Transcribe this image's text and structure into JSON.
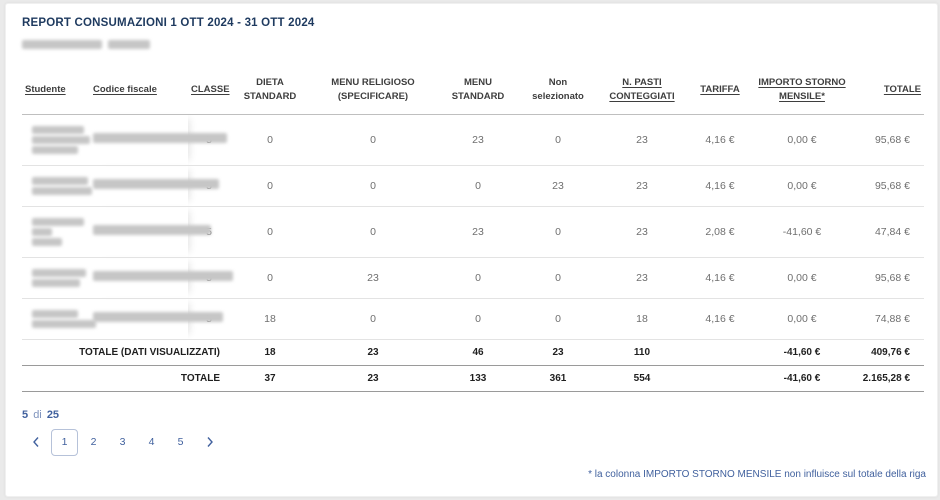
{
  "header": {
    "title": "REPORT CONSUMAZIONI 1 OTT 2024 - 31 OTT 2024",
    "subtitle_redacted": true
  },
  "table": {
    "columns": [
      {
        "key": "studente",
        "label": "Studente",
        "sortable": true
      },
      {
        "key": "codice_fiscale",
        "label": "Codice fiscale",
        "sortable": true
      },
      {
        "key": "classe",
        "label": "CLASSE",
        "sortable": true
      },
      {
        "key": "dieta_standard",
        "label": "DIETA STANDARD",
        "sortable": false
      },
      {
        "key": "menu_religioso",
        "label": "MENU RELIGIOSO (SPECIFICARE)",
        "sortable": false
      },
      {
        "key": "menu_standard",
        "label": "MENU STANDARD",
        "sortable": false
      },
      {
        "key": "non_selezionato",
        "label": "Non selezionato",
        "sortable": false
      },
      {
        "key": "n_pasti",
        "label": "N. PASTI CONTEGGIATI",
        "sortable": true
      },
      {
        "key": "tariffa",
        "label": "TARIFFA",
        "sortable": true
      },
      {
        "key": "importo_storno",
        "label": "IMPORTO STORNO MENSILE*",
        "sortable": true
      },
      {
        "key": "totale",
        "label": "TOTALE",
        "sortable": true
      }
    ],
    "rows": [
      {
        "studente_redacted": true,
        "codice_fiscale_redacted": true,
        "classe": "5",
        "dieta_standard": "0",
        "menu_religioso": "0",
        "menu_standard": "23",
        "non_selezionato": "0",
        "n_pasti": "23",
        "tariffa": "4,16 €",
        "importo_storno": "0,00 €",
        "totale": "95,68 €"
      },
      {
        "studente_redacted": true,
        "codice_fiscale_redacted": true,
        "classe": "5",
        "dieta_standard": "0",
        "menu_religioso": "0",
        "menu_standard": "0",
        "non_selezionato": "23",
        "n_pasti": "23",
        "tariffa": "4,16 €",
        "importo_storno": "0,00 €",
        "totale": "95,68 €"
      },
      {
        "studente_redacted": true,
        "codice_fiscale_redacted": true,
        "classe": "5",
        "dieta_standard": "0",
        "menu_religioso": "0",
        "menu_standard": "23",
        "non_selezionato": "0",
        "n_pasti": "23",
        "tariffa": "2,08 €",
        "importo_storno": "-41,60 €",
        "totale": "47,84 €"
      },
      {
        "studente_redacted": true,
        "codice_fiscale_redacted": true,
        "classe": "5",
        "dieta_standard": "0",
        "menu_religioso": "23",
        "menu_standard": "0",
        "non_selezionato": "0",
        "n_pasti": "23",
        "tariffa": "4,16 €",
        "importo_storno": "0,00 €",
        "totale": "95,68 €"
      },
      {
        "studente_redacted": true,
        "codice_fiscale_redacted": true,
        "classe": "5",
        "dieta_standard": "18",
        "menu_religioso": "0",
        "menu_standard": "0",
        "non_selezionato": "0",
        "n_pasti": "18",
        "tariffa": "4,16 €",
        "importo_storno": "0,00 €",
        "totale": "74,88 €"
      }
    ],
    "totals_visible": {
      "label": "TOTALE (DATI VISUALIZZATI)",
      "dieta_standard": "18",
      "menu_religioso": "23",
      "menu_standard": "46",
      "non_selezionato": "23",
      "n_pasti": "110",
      "tariffa": "",
      "importo_storno": "-41,60 €",
      "totale": "409,76 €"
    },
    "totals_all": {
      "label": "TOTALE",
      "dieta_standard": "37",
      "menu_religioso": "23",
      "menu_standard": "133",
      "non_selezionato": "361",
      "n_pasti": "554",
      "tariffa": "",
      "importo_storno": "-41,60 €",
      "totale": "2.165,28 €"
    }
  },
  "pagination": {
    "summary": {
      "current": "5",
      "separator": "di",
      "total": "25"
    },
    "pages": [
      "1",
      "2",
      "3",
      "4",
      "5"
    ],
    "active_page": "1",
    "prev_icon": "chevron-left-icon",
    "next_icon": "chevron-right-icon"
  },
  "footnote": "* la colonna IMPORTO STORNO MENSILE non influisce sul totale della riga",
  "colors": {
    "title_navy": "#1e3a5f",
    "link_blue": "#41619e",
    "header_text": "#3e3e3e",
    "cell_text": "#6f6f6f",
    "row_separator": "#e3e3e3",
    "totals_border": "#9a9a9a"
  }
}
